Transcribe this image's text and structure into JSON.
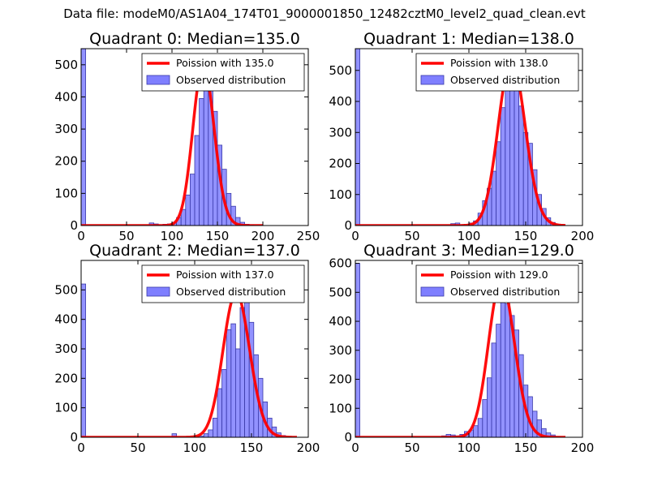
{
  "figure": {
    "suptitle": "Data file: modeM0/AS1A04_174T01_9000001850_12482cztM0_level2_quad_clean.evt"
  },
  "colors": {
    "bar_fill": "#7f7fff",
    "bar_edge": "#3a3aa8",
    "poisson_line": "#ff0000",
    "axis": "#000000"
  },
  "chart_data": [
    {
      "type": "bar",
      "title": "Quadrant 0: Median=135.0",
      "xlim": [
        0,
        250
      ],
      "ylim": [
        0,
        550
      ],
      "xticks": [
        0,
        50,
        100,
        150,
        200,
        250
      ],
      "yticks": [
        0,
        100,
        200,
        300,
        400,
        500
      ],
      "legend": {
        "location": "top-right",
        "entries": [
          "Poission with 135.0",
          "Observed distribution"
        ]
      },
      "observed": {
        "name": "Observed distribution",
        "bin_width": 5,
        "bins": [
          [
            0,
            560
          ],
          [
            75,
            8
          ],
          [
            80,
            5
          ],
          [
            85,
            2
          ],
          [
            90,
            4
          ],
          [
            95,
            5
          ],
          [
            100,
            10
          ],
          [
            105,
            25
          ],
          [
            110,
            50
          ],
          [
            115,
            95
          ],
          [
            120,
            160
          ],
          [
            125,
            280
          ],
          [
            130,
            395
          ],
          [
            135,
            455
          ],
          [
            140,
            450
          ],
          [
            145,
            355
          ],
          [
            150,
            250
          ],
          [
            155,
            175
          ],
          [
            160,
            100
          ],
          [
            165,
            60
          ],
          [
            170,
            25
          ],
          [
            175,
            10
          ],
          [
            180,
            4
          ],
          [
            185,
            2
          ]
        ]
      },
      "poisson": {
        "name": "Poission with 135.0",
        "mean": 135.0,
        "x_range": [
          0,
          200
        ]
      }
    },
    {
      "type": "bar",
      "title": "Quadrant 1: Median=138.0",
      "xlim": [
        0,
        200
      ],
      "ylim": [
        0,
        570
      ],
      "xticks": [
        0,
        50,
        100,
        150,
        200
      ],
      "yticks": [
        0,
        100,
        200,
        300,
        400,
        500
      ],
      "legend": {
        "location": "top-right",
        "entries": [
          "Poission with 138.0",
          "Observed distribution"
        ]
      },
      "observed": {
        "name": "Observed distribution",
        "bin_width": 4,
        "bins": [
          [
            0,
            570
          ],
          [
            84,
            6
          ],
          [
            88,
            8
          ],
          [
            92,
            2
          ],
          [
            96,
            4
          ],
          [
            100,
            8
          ],
          [
            104,
            15
          ],
          [
            108,
            40
          ],
          [
            112,
            80
          ],
          [
            116,
            120
          ],
          [
            120,
            175
          ],
          [
            124,
            270
          ],
          [
            128,
            380
          ],
          [
            132,
            490
          ],
          [
            136,
            545
          ],
          [
            140,
            480
          ],
          [
            144,
            385
          ],
          [
            148,
            300
          ],
          [
            152,
            265
          ],
          [
            156,
            180
          ],
          [
            160,
            100
          ],
          [
            164,
            55
          ],
          [
            168,
            25
          ],
          [
            172,
            10
          ],
          [
            176,
            4
          ],
          [
            180,
            2
          ]
        ]
      },
      "poisson": {
        "name": "Poission with 138.0",
        "mean": 138.0,
        "x_range": [
          0,
          185
        ]
      }
    },
    {
      "type": "bar",
      "title": "Quadrant 2: Median=137.0",
      "xlim": [
        0,
        200
      ],
      "ylim": [
        0,
        600
      ],
      "xticks": [
        0,
        50,
        100,
        150,
        200
      ],
      "yticks": [
        0,
        100,
        200,
        300,
        400,
        500
      ],
      "legend": {
        "location": "top-right",
        "entries": [
          "Poission with 137.0",
          "Observed distribution"
        ]
      },
      "observed": {
        "name": "Observed distribution",
        "bin_width": 4,
        "bins": [
          [
            0,
            520
          ],
          [
            80,
            12
          ],
          [
            104,
            4
          ],
          [
            108,
            12
          ],
          [
            112,
            25
          ],
          [
            116,
            65
          ],
          [
            120,
            165
          ],
          [
            124,
            230
          ],
          [
            128,
            365
          ],
          [
            132,
            385
          ],
          [
            136,
            300
          ],
          [
            140,
            440
          ],
          [
            144,
            480
          ],
          [
            148,
            390
          ],
          [
            152,
            280
          ],
          [
            156,
            200
          ],
          [
            160,
            120
          ],
          [
            164,
            65
          ],
          [
            168,
            35
          ],
          [
            172,
            15
          ],
          [
            176,
            6
          ],
          [
            180,
            2
          ]
        ]
      },
      "poisson": {
        "name": "Poission with 137.0",
        "mean": 137.0,
        "x_range": [
          0,
          190
        ]
      }
    },
    {
      "type": "bar",
      "title": "Quadrant 3: Median=129.0",
      "xlim": [
        0,
        200
      ],
      "ylim": [
        0,
        610
      ],
      "xticks": [
        0,
        50,
        100,
        150,
        200
      ],
      "yticks": [
        0,
        100,
        200,
        300,
        400,
        500,
        600
      ],
      "legend": {
        "location": "top-right",
        "entries": [
          "Poission with 129.0",
          "Observed distribution"
        ]
      },
      "observed": {
        "name": "Observed distribution",
        "bin_width": 4,
        "bins": [
          [
            0,
            600
          ],
          [
            76,
            5
          ],
          [
            80,
            10
          ],
          [
            84,
            8
          ],
          [
            88,
            5
          ],
          [
            92,
            10
          ],
          [
            96,
            20
          ],
          [
            100,
            25
          ],
          [
            104,
            40
          ],
          [
            108,
            65
          ],
          [
            112,
            130
          ],
          [
            116,
            205
          ],
          [
            120,
            325
          ],
          [
            124,
            390
          ],
          [
            128,
            545
          ],
          [
            132,
            460
          ],
          [
            136,
            420
          ],
          [
            140,
            370
          ],
          [
            144,
            285
          ],
          [
            148,
            180
          ],
          [
            152,
            140
          ],
          [
            156,
            90
          ],
          [
            160,
            60
          ],
          [
            164,
            30
          ],
          [
            168,
            15
          ],
          [
            172,
            8
          ],
          [
            176,
            3
          ]
        ]
      },
      "poisson": {
        "name": "Poission with 129.0",
        "mean": 129.0,
        "x_range": [
          0,
          185
        ]
      }
    }
  ]
}
